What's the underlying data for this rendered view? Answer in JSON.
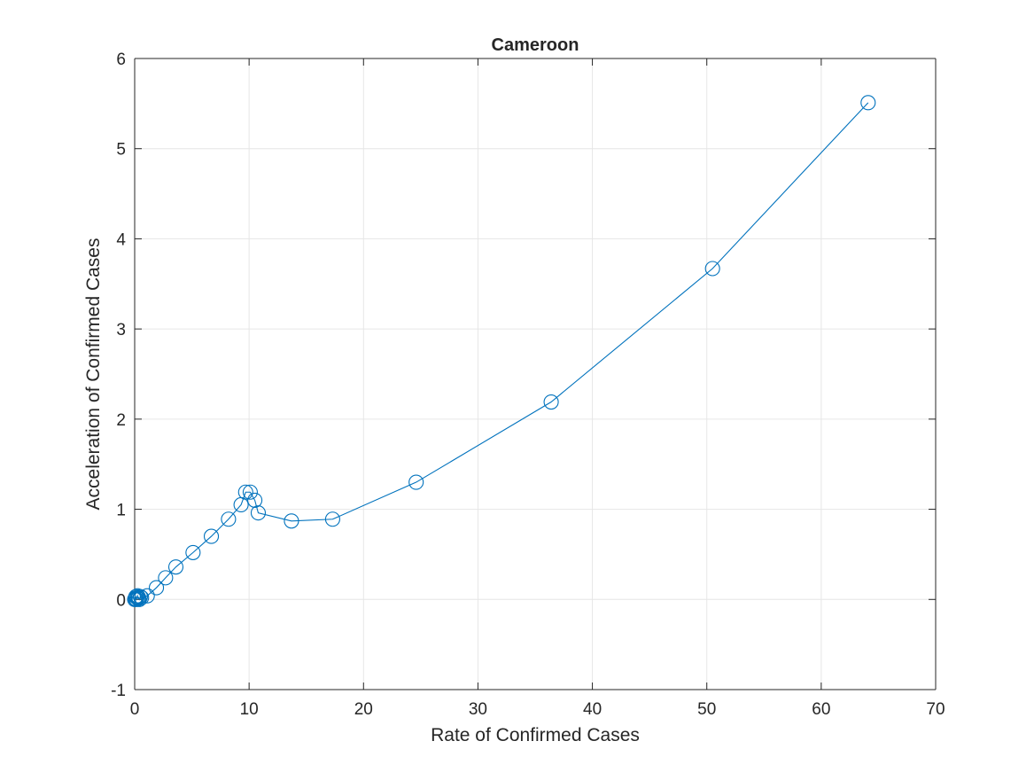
{
  "chart_data": {
    "type": "line",
    "title": "Cameroon",
    "xlabel": "Rate of Confirmed Cases",
    "ylabel": "Acceleration of Confirmed Cases",
    "xlim": [
      0,
      70
    ],
    "ylim": [
      -1,
      6
    ],
    "xticks": [
      0,
      10,
      20,
      30,
      40,
      50,
      60,
      70
    ],
    "yticks": [
      -1,
      0,
      1,
      2,
      3,
      4,
      5,
      6
    ],
    "grid": true,
    "marker": "circle",
    "color": "#0072bd",
    "series": [
      {
        "x": [
          0.0,
          0.05,
          0.1,
          0.15,
          0.2,
          0.25,
          0.3,
          0.35,
          0.4,
          0.5,
          0.6,
          1.1,
          1.9,
          2.7,
          3.6,
          5.1,
          6.7,
          8.2,
          9.3,
          9.7,
          10.1,
          10.5,
          10.8,
          13.7,
          17.3,
          24.6,
          36.4,
          50.5,
          64.1
        ],
        "y": [
          0.0,
          0.01,
          0.03,
          0.0,
          0.02,
          0.04,
          0.01,
          0.02,
          0.0,
          0.03,
          0.02,
          0.04,
          0.13,
          0.24,
          0.36,
          0.52,
          0.7,
          0.89,
          1.05,
          1.19,
          1.19,
          1.1,
          0.96,
          0.87,
          0.89,
          1.3,
          2.19,
          3.67,
          5.51
        ]
      }
    ]
  }
}
